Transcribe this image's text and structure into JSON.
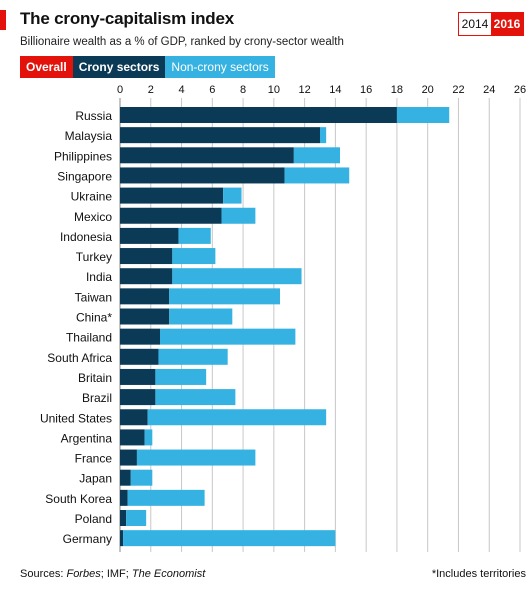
{
  "header": {
    "title": "The crony-capitalism index",
    "subtitle": "Billionaire wealth as a % of GDP, ranked by crony-sector wealth",
    "years": [
      "2014",
      "2016"
    ],
    "active_year": "2016"
  },
  "filters": {
    "overall": "Overall",
    "crony": "Crony sectors",
    "noncrony": "Non-crony sectors"
  },
  "footer": {
    "sources_prefix": "Sources: ",
    "source1": "Forbes",
    "source_mid": "; IMF; ",
    "source2": "The Economist",
    "note": "*Includes territories"
  },
  "colors": {
    "crony": "#0b3a57",
    "noncrony": "#35b2e1",
    "accent": "#e3120b",
    "grid": "#c8c8c8"
  },
  "chart_data": {
    "type": "bar",
    "orientation": "horizontal",
    "stacked": true,
    "xlim": [
      0,
      26
    ],
    "xticks": [
      0,
      2,
      4,
      6,
      8,
      10,
      12,
      14,
      16,
      18,
      20,
      22,
      24,
      26
    ],
    "grid": true,
    "categories": [
      "Russia",
      "Malaysia",
      "Philippines",
      "Singapore",
      "Ukraine",
      "Mexico",
      "Indonesia",
      "Turkey",
      "India",
      "Taiwan",
      "China*",
      "Thailand",
      "South Africa",
      "Britain",
      "Brazil",
      "United States",
      "Argentina",
      "France",
      "Japan",
      "South Korea",
      "Poland",
      "Germany"
    ],
    "series": [
      {
        "name": "Crony sectors",
        "values": [
          18.0,
          13.0,
          11.3,
          10.7,
          6.7,
          6.6,
          3.8,
          3.4,
          3.4,
          3.2,
          3.2,
          2.6,
          2.5,
          2.3,
          2.3,
          1.8,
          1.6,
          1.1,
          0.7,
          0.5,
          0.4,
          0.2
        ]
      },
      {
        "name": "Non-crony sectors",
        "values": [
          3.4,
          0.4,
          3.0,
          4.2,
          1.2,
          2.2,
          2.1,
          2.8,
          8.4,
          7.2,
          4.1,
          8.8,
          4.5,
          3.3,
          5.2,
          11.6,
          0.5,
          7.7,
          1.4,
          5.0,
          1.3,
          13.8
        ]
      }
    ]
  }
}
